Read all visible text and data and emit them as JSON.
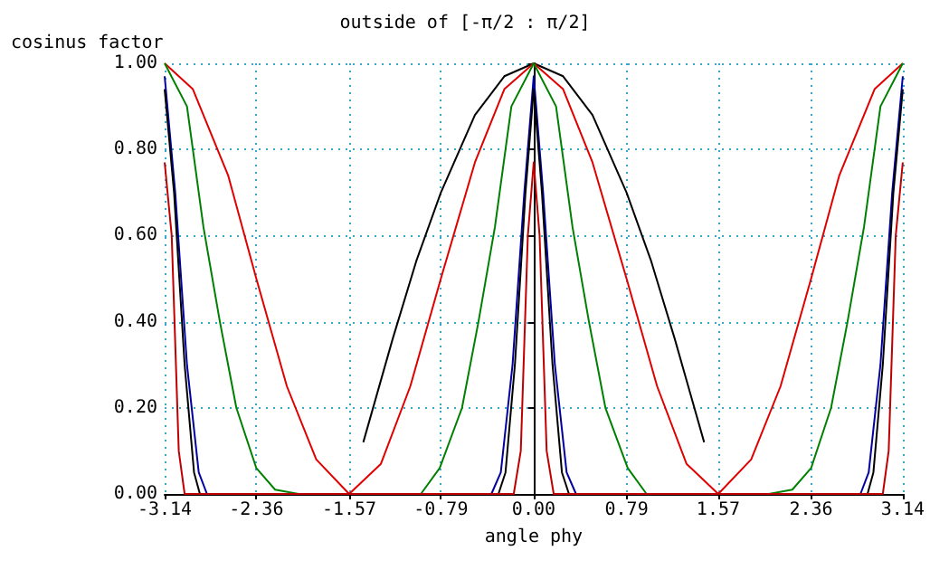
{
  "chart_data": {
    "type": "line",
    "title": "outside of [-π/2 : π/2]",
    "xlabel": "angle phy",
    "ylabel": "cosinus factor",
    "xlim": [
      -3.14,
      3.14
    ],
    "xticks": [
      -3.14,
      -2.36,
      -1.57,
      -0.79,
      {
        "value": 0,
        "label": "0.00"
      },
      0.79,
      1.57,
      2.36,
      3.14
    ],
    "ylim": [
      0,
      1
    ],
    "yticks": [
      {
        "value": 0,
        "label": "0.00"
      },
      {
        "value": 0.2,
        "label": "0.20"
      },
      {
        "value": 0.4,
        "label": "0.40"
      },
      {
        "value": 0.6,
        "label": "0.60"
      },
      {
        "value": 0.8,
        "label": "0.80"
      },
      {
        "value": 1,
        "label": "1.00"
      }
    ],
    "grid": true,
    "marker": "none",
    "line_style": "solid",
    "series": [
      {
        "color": "#000000",
        "x": [
          -1.45,
          -1.2,
          -1.0,
          -0.79,
          -0.5,
          -0.25,
          0,
          0.25,
          0.5,
          0.79,
          1.0,
          1.2,
          1.45
        ],
        "values": [
          0.12,
          0.36,
          0.54,
          0.7,
          0.88,
          0.97,
          1.0,
          0.97,
          0.88,
          0.7,
          0.54,
          0.36,
          0.12
        ]
      },
      {
        "color": "#e00000",
        "x": [
          -3.14,
          -2.9,
          -2.6,
          -2.36,
          -2.1,
          -1.85,
          -1.57,
          -1.3,
          -1.05,
          -0.79,
          -0.5,
          -0.25,
          0,
          0.25,
          0.5,
          0.79,
          1.05,
          1.3,
          1.57,
          1.85,
          2.1,
          2.36,
          2.6,
          2.9,
          3.14
        ],
        "values": [
          1.0,
          0.94,
          0.74,
          0.5,
          0.25,
          0.08,
          0,
          0.07,
          0.25,
          0.5,
          0.77,
          0.94,
          1.0,
          0.94,
          0.77,
          0.5,
          0.25,
          0.07,
          0,
          0.08,
          0.25,
          0.5,
          0.74,
          0.94,
          1.0
        ]
      },
      {
        "color": "#008000",
        "x": [
          -3.14,
          -2.95,
          -2.81,
          -2.67,
          -2.53,
          -2.36,
          -2.2,
          -2.0,
          -0.96,
          -0.8,
          -0.61,
          -0.47,
          -0.33,
          -0.19,
          0,
          0.19,
          0.33,
          0.47,
          0.61,
          0.8,
          0.96,
          2.0,
          2.2,
          2.36,
          2.53,
          2.67,
          2.81,
          2.95,
          3.14
        ],
        "values": [
          1.0,
          0.9,
          0.62,
          0.4,
          0.2,
          0.06,
          0.01,
          0,
          0,
          0.06,
          0.2,
          0.4,
          0.62,
          0.9,
          1.0,
          0.9,
          0.62,
          0.4,
          0.2,
          0.06,
          0,
          0,
          0.01,
          0.06,
          0.2,
          0.4,
          0.62,
          0.9,
          1.0
        ]
      },
      {
        "color": "#0000a0",
        "x": [
          -3.14,
          -3.05,
          -2.95,
          -2.85,
          -2.78,
          -0.36,
          -0.28,
          -0.18,
          -0.08,
          0,
          0.08,
          0.18,
          0.28,
          0.36,
          2.78,
          2.85,
          2.95,
          3.05,
          3.14
        ],
        "values": [
          0.97,
          0.7,
          0.3,
          0.05,
          0,
          0,
          0.05,
          0.3,
          0.7,
          0.97,
          0.7,
          0.3,
          0.05,
          0,
          0,
          0.05,
          0.3,
          0.7,
          0.97
        ]
      },
      {
        "color": "#000000",
        "x": [
          -3.14,
          -3.06,
          -2.97,
          -2.89,
          -2.84,
          -0.3,
          -0.24,
          -0.16,
          -0.07,
          0,
          0.07,
          0.16,
          0.24,
          0.3,
          2.84,
          2.89,
          2.97,
          3.06,
          3.14
        ],
        "values": [
          0.94,
          0.7,
          0.3,
          0.05,
          0,
          0,
          0.05,
          0.3,
          0.7,
          0.94,
          0.7,
          0.3,
          0.05,
          0,
          0,
          0.05,
          0.3,
          0.7,
          0.94
        ]
      },
      {
        "color": "#c00000",
        "x": [
          -3.14,
          -3.08,
          -3.02,
          -2.97,
          -0.17,
          -0.11,
          -0.05,
          0,
          0.05,
          0.11,
          0.17,
          2.97,
          3.02,
          3.08,
          3.14
        ],
        "values": [
          0.77,
          0.6,
          0.1,
          0,
          0,
          0.1,
          0.6,
          0.77,
          0.6,
          0.1,
          0,
          0,
          0.1,
          0.6,
          0.77
        ]
      }
    ]
  }
}
